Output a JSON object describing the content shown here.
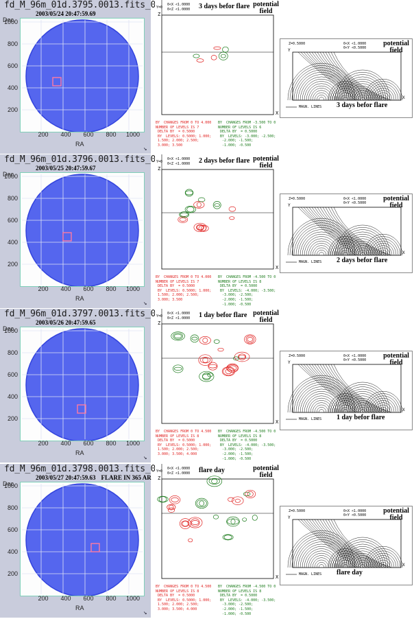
{
  "colors": {
    "disk": "#5566ee",
    "disk_rim": "#3344dd",
    "panel_bg": "#c9ccdc",
    "red_contour": "#e0201f",
    "green_contour": "#1a7a1a"
  },
  "common": {
    "dec_label": "Dec",
    "ra_label": "RA",
    "y_ticks": [
      "1000",
      "800",
      "600",
      "400",
      "200"
    ],
    "x_ticks": [
      "200",
      "400",
      "600",
      "800",
      "1000"
    ],
    "y0_label": "Y=0",
    "mag_range_x": "0<X <1.0000",
    "mag_range_z": "0<Z <1.0000",
    "axis_z": "Z",
    "axis_x": "X",
    "axis_y": "Y",
    "potential": "potential",
    "field": "field",
    "magn_lines": "MAGN. LINES",
    "field_z": "Z=0.5000",
    "field_rx": "0<X <1.0000",
    "field_ry": "0<Y <0.5000"
  },
  "rows": [
    {
      "fits_title": "fd_M_96m_01d.3795.0013.fits_0",
      "date": "2003/05/24 20:47:59.69",
      "flare_note": "",
      "caption": "3 days befor flare",
      "field_caption": "3 days befor flare",
      "red_text": "BY  CHANGES FROM 0 TO 4.000\nNUMBER OF LEVELS IS 7\n DELTA BY  = 0.5000\n BY  LEVELS: 0.5000; 1.000;\n 1.500; 2.000; 2.500;\n 3.000; 3.500",
      "green_text": "BY  CHANGES FROM -3.500 TO 0\nNUMBER OF LEVELS IS 6\n DELTA BY  = 0.5000\n BY  LEVELS: -3.000; -2.500;\n  -2.000; -1.500;\n  -1.000; -0.500"
    },
    {
      "fits_title": "fd_M_96m_01d.3796.0013.fits_0",
      "date": "2003/05/25 20:47:59.67",
      "flare_note": "",
      "caption": "2 days befor flare",
      "field_caption": "2 days befor flare",
      "red_text": "BY  CHANGES FROM 0 TO 4.000\nNUMBER OF LEVELS IS 7\n DELTA BY  = 0.5000\n BY  LEVELS: 0.5000; 1.000;\n 1.500; 2.000; 2.500;\n 3.000; 3.500",
      "green_text": "BY  CHANGES FROM -4.500 TO 0\nNUMBER OF LEVELS IS 8\n DELTA BY  = 0.5000\n BY  LEVELS: -4.000; -3.500;\n  -3.000; -2.500;\n  -2.000; -1.500;\n  -1.000; -0.500"
    },
    {
      "fits_title": "fd_M_96m_01d.3797.0013.fits_0",
      "date": "2003/05/26 20:47:59.65",
      "flare_note": "",
      "caption": "1 day befor flare",
      "field_caption": "1 day befor flare",
      "red_text": "BY  CHANGES FROM 0 TO 4.500\nNUMBER OF LEVELS IS 8\n DELTA BY  = 0.5000\n BY  LEVELS: 0.5000; 1.000;\n 1.500; 2.000; 2.500;\n 3.000; 3.500; 4.000",
      "green_text": "BY  CHANGES FROM -4.500 TO 0\nNUMBER OF LEVELS IS 8\n DELTA BY  = 0.5000\n BY  LEVELS: -4.000; -3.500;\n  -3.000; -2.500;\n  -2.000; -1.500;\n  -1.000; -0.500"
    },
    {
      "fits_title": "fd_M_96m_01d.3798.0013.fits_0",
      "date": "2003/05/27 20:47:59.63",
      "flare_note": "FLARE IN 365 AR",
      "caption": "flare day",
      "field_caption": "flare day",
      "red_text": "BY  CHANGES FROM 0 TO 4.500\nNUMBER OF LEVELS IS 8\n DELTA BY  = 0.5000\n BY  LEVELS: 0.5000; 1.000;\n 1.500; 2.000; 2.500;\n 3.000; 3.500; 4.000",
      "green_text": "BY  CHANGES FROM -4.500 TO 0\nNUMBER OF LEVELS IS 8\n DELTA BY  = 0.5000\n BY  LEVELS: -4.000; -3.500;\n  -3.000; -2.500;\n  -2.000; -1.500;\n  -1.000; -0.500"
    }
  ]
}
